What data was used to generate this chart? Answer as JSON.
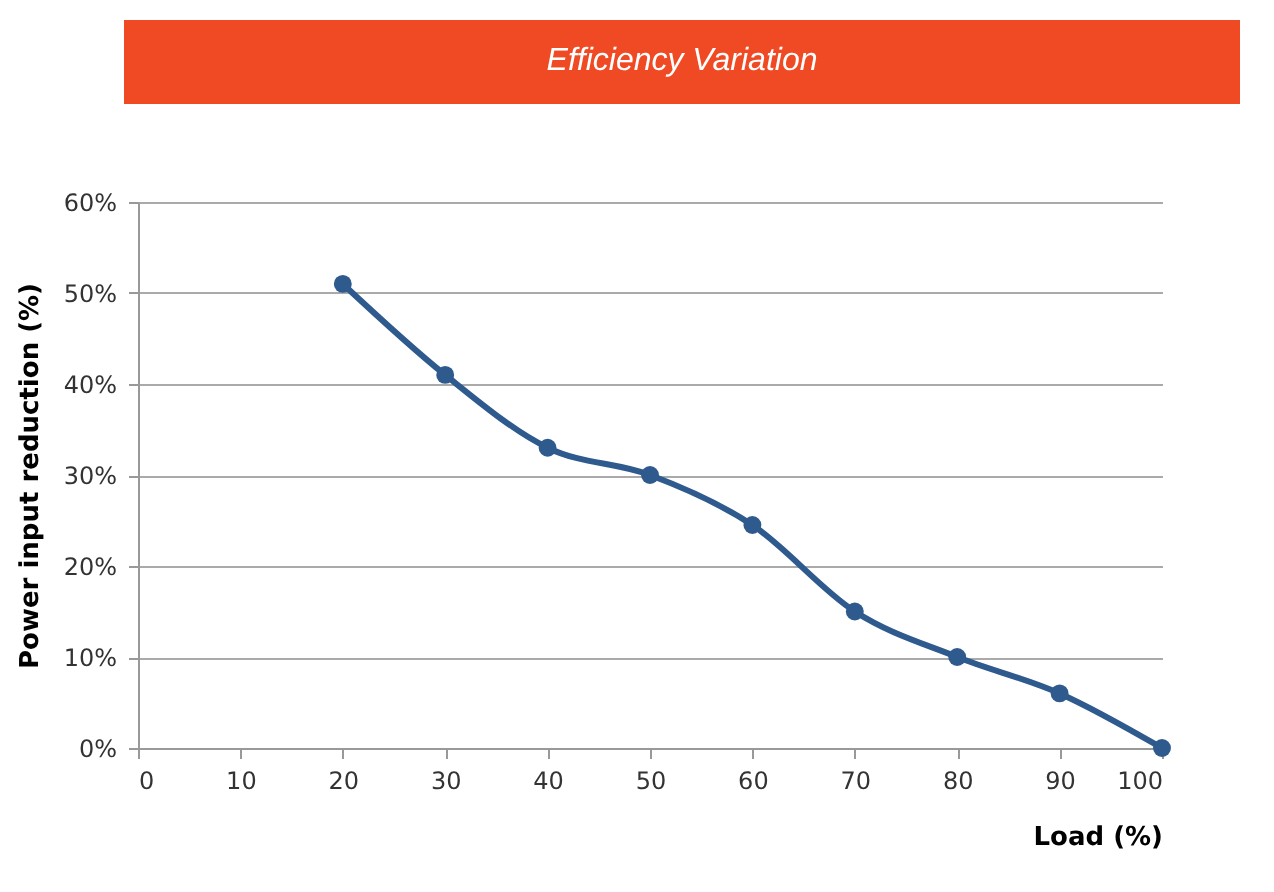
{
  "chart_data": {
    "type": "line",
    "title": "Efficiency Variation",
    "xlabel": "Load (%)",
    "ylabel": "Power input reduction (%)",
    "x": [
      20,
      30,
      40,
      50,
      60,
      70,
      80,
      90,
      100
    ],
    "series": [
      {
        "color": "#2e5a8e",
        "values": [
          51,
          41,
          33,
          30,
          24.5,
          15,
          10,
          6,
          0
        ]
      }
    ],
    "xlim": [
      0,
      100
    ],
    "xticks": [
      0,
      10,
      20,
      30,
      40,
      50,
      60,
      70,
      80,
      90,
      100
    ],
    "ylim": [
      0,
      60
    ],
    "yticks": [
      {
        "value": 0,
        "label": "0%"
      },
      {
        "value": 10,
        "label": "10%"
      },
      {
        "value": 20,
        "label": "20%"
      },
      {
        "value": 30,
        "label": "30%"
      },
      {
        "value": 40,
        "label": "40%"
      },
      {
        "value": 50,
        "label": "50%"
      },
      {
        "value": 60,
        "label": "60%"
      }
    ],
    "grid": "y",
    "marker": "circle",
    "line_style": "solid"
  }
}
